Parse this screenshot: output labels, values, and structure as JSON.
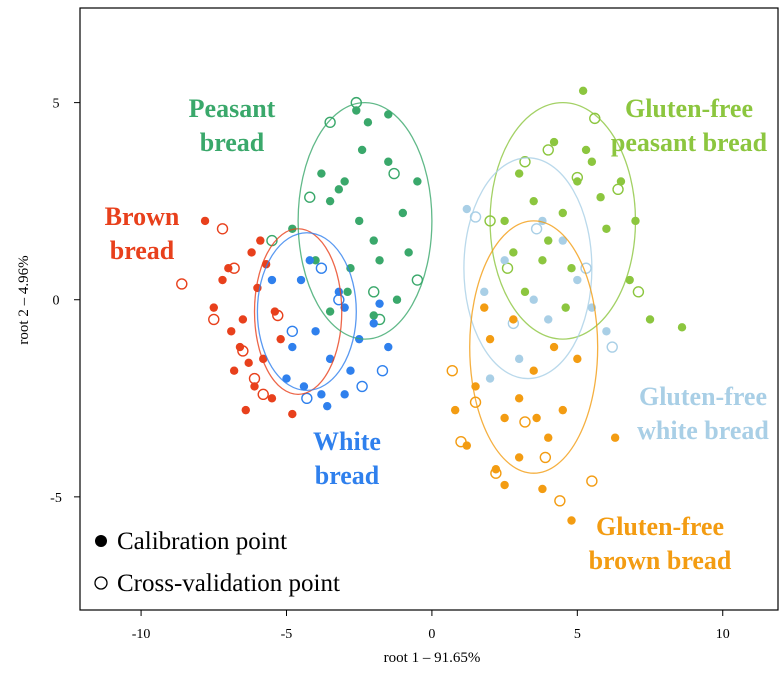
{
  "chart_data": {
    "type": "scatter",
    "x_label": "root 1 – 91.65%",
    "y_label": "root 2 – 4.96%",
    "xlim": [
      -12.1,
      11.9
    ],
    "ylim": [
      -7.87,
      7.4
    ],
    "xticks": [
      -10,
      -5,
      0,
      5,
      10
    ],
    "yticks": [
      -5,
      0,
      5
    ],
    "legend": [
      "Calibration point",
      "Cross-validation point"
    ],
    "series": [
      {
        "name": "Brown bread",
        "color": "#e8401c",
        "x": [
          -6.5,
          -7,
          -5.8,
          -6.2,
          -7.5,
          -5.5,
          -6.8,
          -6,
          -5.2,
          -7.2,
          -6.4,
          -5.9,
          -6.6,
          -7.8,
          -5.4,
          -6.1,
          -4.8,
          -6.9,
          -5.7,
          -6.3
        ],
        "values": [
          -0.5,
          0.8,
          -1.5,
          1.2,
          -0.2,
          -2.5,
          -1.8,
          0.3,
          -1,
          0.5,
          -2.8,
          1.5,
          -1.2,
          2,
          -0.3,
          -2.2,
          -2.9,
          -0.8,
          0.9,
          -1.6
        ],
        "cv_x": [
          -8.6,
          -7.2,
          -6.5,
          -5.8,
          -7.5,
          -6.8,
          -5.3,
          -6.1
        ],
        "cv_values": [
          0.4,
          1.8,
          -1.3,
          -2.4,
          -0.5,
          0.8,
          -0.4,
          -2
        ],
        "ellipse": [
          -4.6,
          -0.3,
          1.5,
          2.1
        ]
      },
      {
        "name": "Peasant bread",
        "color": "#3aa86b",
        "x": [
          -2.5,
          -3,
          -2,
          -1.5,
          -3.5,
          -4,
          -1,
          -2.2,
          -2.8,
          -1.8,
          -0.5,
          -3.8,
          -2.6,
          -1.2,
          -4.8,
          -2,
          -3.2,
          -0.8,
          -1.5,
          -2.9,
          -2.4,
          -3.5
        ],
        "values": [
          2,
          3,
          1.5,
          3.5,
          2.5,
          1,
          2.2,
          4.5,
          0.8,
          1,
          3,
          3.2,
          4.8,
          0,
          1.8,
          -0.4,
          2.8,
          1.2,
          4.7,
          0.2,
          3.8,
          -0.3
        ],
        "cv_x": [
          -2.6,
          -3.5,
          -5.5,
          -1.3,
          -0.5,
          -4.2,
          -2,
          -1.8
        ],
        "cv_values": [
          5,
          4.5,
          1.5,
          3.2,
          0.5,
          2.6,
          0.2,
          -0.5
        ],
        "ellipse": [
          -2.3,
          2,
          2.3,
          3
        ]
      },
      {
        "name": "White bread",
        "color": "#2f80ed",
        "x": [
          -4,
          -3.5,
          -4.5,
          -3,
          -5,
          -2.5,
          -3.8,
          -4.2,
          -2,
          -1.5,
          -3.2,
          -4.8,
          -3.6,
          -2.8,
          -5.5,
          -1.8,
          -4.4,
          -3
        ],
        "values": [
          -0.8,
          -1.5,
          0.5,
          -0.2,
          -2,
          -1,
          -2.4,
          1,
          -0.6,
          -1.2,
          0.2,
          -1.2,
          -2.7,
          -1.8,
          0.5,
          -0.1,
          -2.2,
          -2.4
        ],
        "cv_x": [
          -4.3,
          -1.7,
          -3.2,
          -4.8,
          -2.4,
          -3.8
        ],
        "cv_values": [
          -2.5,
          -1.8,
          0,
          -0.8,
          -2.2,
          0.8
        ],
        "ellipse": [
          -4.3,
          -0.3,
          1.7,
          2
        ]
      },
      {
        "name": "Gluten-free peasant bread",
        "color": "#8cc63f",
        "x": [
          4.5,
          5,
          3.5,
          4,
          6,
          3,
          5.5,
          4.8,
          2.5,
          6.5,
          7.5,
          3.8,
          5.2,
          4.2,
          6.8,
          2.8,
          5.8,
          8.6,
          4.6,
          3.2,
          5.3,
          7
        ],
        "values": [
          2.2,
          3,
          2.5,
          1.5,
          1.8,
          3.2,
          3.5,
          0.8,
          2,
          3,
          -0.5,
          1,
          5.3,
          4,
          0.5,
          1.2,
          2.6,
          -0.7,
          -0.2,
          0.2,
          3.8,
          2
        ],
        "cv_x": [
          5.6,
          4,
          3.2,
          6.4,
          2.6,
          7.1,
          5,
          2
        ],
        "cv_values": [
          4.6,
          3.8,
          3.5,
          2.8,
          0.8,
          0.2,
          3.1,
          2
        ],
        "ellipse": [
          4.5,
          2,
          2.5,
          3
        ]
      },
      {
        "name": "Gluten-free white bread",
        "color": "#a9cfe6",
        "x": [
          3.5,
          2.5,
          4,
          5,
          3,
          1.8,
          6,
          4.5,
          2,
          3.8,
          5.5,
          1.2
        ],
        "values": [
          0,
          1,
          -0.5,
          0.5,
          -1.5,
          0.2,
          -0.8,
          1.5,
          -2,
          2,
          -0.2,
          2.3
        ],
        "cv_x": [
          1.5,
          3.6,
          6.2,
          5.3,
          2.8
        ],
        "cv_values": [
          2.1,
          1.8,
          -1.2,
          0.8,
          -0.6
        ],
        "ellipse": [
          3.3,
          0.8,
          2.2,
          2.8
        ]
      },
      {
        "name": "Gluten-free brown bread",
        "color": "#f39c12",
        "x": [
          3,
          2.5,
          3.5,
          4,
          2,
          1.5,
          4.5,
          3,
          2.2,
          5,
          0.8,
          3.8,
          2.8,
          1.2,
          4.2,
          6.3,
          2.5,
          3.6,
          4.8,
          1.8
        ],
        "values": [
          -2.5,
          -3,
          -1.8,
          -3.5,
          -1,
          -2.2,
          -2.8,
          -4,
          -4.3,
          -1.5,
          -2.8,
          -4.8,
          -0.5,
          -3.7,
          -1.2,
          -3.5,
          -4.7,
          -3,
          -5.6,
          -0.2
        ],
        "cv_x": [
          1,
          2.2,
          4.4,
          3.2,
          1.5,
          5.5,
          0.7,
          3.9
        ],
        "cv_values": [
          -3.6,
          -4.4,
          -5.1,
          -3.1,
          -2.6,
          -4.6,
          -1.8,
          -4
        ],
        "ellipse": [
          3.5,
          -1.2,
          2.2,
          3.2
        ]
      }
    ]
  }
}
